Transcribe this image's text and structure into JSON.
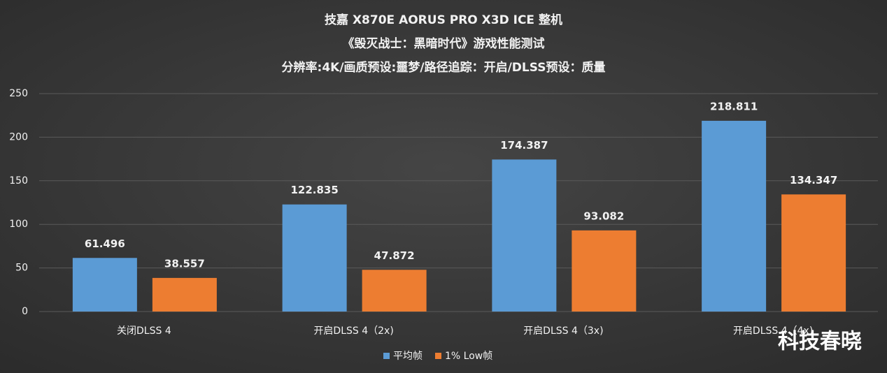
{
  "chart_data": {
    "type": "bar",
    "title_lines": [
      "技嘉 X870E AORUS PRO X3D ICE 整机",
      "《毁灭战士：黑暗时代》游戏性能测试",
      "分辨率:4K/画质预设:噩梦/路径追踪：开启/DLSS预设：质量"
    ],
    "categories": [
      "关闭DLSS 4",
      "开启DLSS 4（2x)",
      "开启DLSS 4（3x)",
      "开启DLSS 4（4x)"
    ],
    "series": [
      {
        "name": "平均帧",
        "color": "#5b9bd5",
        "values": [
          61.496,
          122.835,
          174.387,
          218.811
        ]
      },
      {
        "name": "1% Low帧",
        "color": "#ed7d31",
        "values": [
          38.557,
          47.872,
          93.082,
          134.347
        ]
      }
    ],
    "ylim": [
      0,
      250
    ],
    "yticks": [
      0,
      50,
      100,
      150,
      200,
      250
    ],
    "grid": true,
    "legend": "bottom",
    "watermark": "科技春晓"
  }
}
